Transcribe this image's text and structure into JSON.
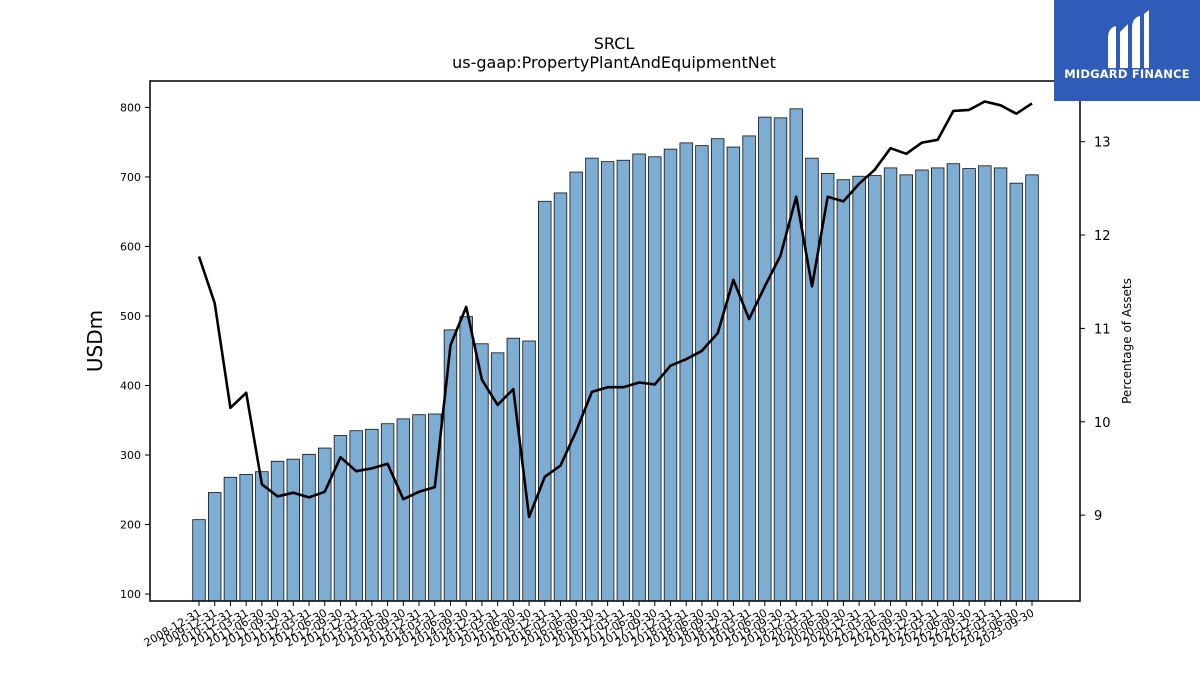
{
  "chart_data": {
    "type": "bar",
    "title": "SRCL",
    "subtitle": "us-gaap:PropertyPlantAndEquipmentNet",
    "ylabel": "USDm",
    "y2label": "Percentage of Assets",
    "ylim": [
      90,
      838
    ],
    "y2lim": [
      8.08,
      13.65
    ],
    "yticks": [
      100,
      200,
      300,
      400,
      500,
      600,
      700,
      800
    ],
    "y2ticks": [
      9,
      10,
      11,
      12,
      13
    ],
    "colors": {
      "bar": "#7eadd4",
      "bar_edge": "#111111",
      "line": "#000000"
    },
    "categories": [
      "2008-12-31",
      "2009-12-31",
      "2010-12-31",
      "2011-03-31",
      "2011-06-30",
      "2011-09-30",
      "2011-12-31",
      "2012-03-31",
      "2012-06-30",
      "2012-09-30",
      "2012-12-31",
      "2013-03-31",
      "2013-06-30",
      "2013-09-30",
      "2013-12-31",
      "2014-03-31",
      "2014-06-30",
      "2014-09-30",
      "2014-12-31",
      "2015-03-31",
      "2015-06-30",
      "2015-09-30",
      "2015-12-31",
      "2016-03-31",
      "2016-06-30",
      "2016-09-30",
      "2016-12-31",
      "2017-03-31",
      "2017-06-30",
      "2017-09-30",
      "2017-12-31",
      "2018-03-31",
      "2018-06-30",
      "2018-09-30",
      "2018-12-31",
      "2019-03-31",
      "2019-06-30",
      "2019-09-30",
      "2019-12-31",
      "2020-03-31",
      "2020-06-30",
      "2020-09-30",
      "2020-12-31",
      "2021-03-31",
      "2021-06-30",
      "2021-09-30",
      "2021-12-31",
      "2022-03-31",
      "2022-06-30",
      "2022-09-30",
      "2022-12-31",
      "2023-03-31",
      "2023-06-30",
      "2023-09-30"
    ],
    "xtick_labels": [
      "2008-12-31",
      "2009-12-31",
      "2010-12-31",
      "2011-03-31",
      "2011-06-30",
      "2011-09-30",
      "2011-12-31",
      "2012-03-31",
      "2012-06-30",
      "2012-09-30",
      "2012-12-31",
      "2013-03-31",
      "2013-06-30",
      "2013-09-30",
      "2013-12-31",
      "2014-03-31",
      "2014-06-30",
      "2014-09-30",
      "2014-12-31",
      "2015-03-31",
      "2015-06-30",
      "2015-09-30",
      "2015-12-31",
      "2016-03-31",
      "2016-06-30",
      "2016-09-30",
      "2016-12-31",
      "2017-03-31",
      "2017-06-30",
      "2017-09-30",
      "2017-12-31",
      "2018-03-31",
      "2018-06-30",
      "2018-09-30",
      "2018-12-31",
      "2019-03-31",
      "2019-06-30",
      "2019-09-30",
      "2019-12-31",
      "2020-03-31",
      "2020-06-30",
      "2020-09-30",
      "2020-12-31",
      "2021-03-31",
      "2021-06-30",
      "2021-09-30",
      "2021-12-31",
      "2022-03-31",
      "2022-06-30",
      "2022-09-30",
      "2022-12-31",
      "2023-03-31",
      "2023-06-30",
      "2023-09-30"
    ],
    "series": [
      {
        "name": "USDm",
        "type": "bar",
        "values": [
          207,
          246,
          268,
          272,
          276,
          291,
          294,
          301,
          310,
          328,
          335,
          337,
          345,
          352,
          358,
          359,
          480,
          499,
          460,
          447,
          468,
          464,
          665,
          677,
          707,
          727,
          722,
          724,
          733,
          729,
          740,
          749,
          745,
          755,
          743,
          759,
          786,
          785,
          798,
          727,
          705,
          696,
          701,
          702,
          713,
          703,
          710,
          713,
          719,
          712,
          716,
          713,
          691,
          703
        ]
      },
      {
        "name": "Percentage of Assets",
        "type": "line",
        "axis": "right",
        "values": [
          11.77,
          11.27,
          10.15,
          10.31,
          9.33,
          9.2,
          9.24,
          9.19,
          9.25,
          9.62,
          9.47,
          9.5,
          9.55,
          9.17,
          9.25,
          9.3,
          10.82,
          11.23,
          10.45,
          10.18,
          10.35,
          8.98,
          9.41,
          9.53,
          9.9,
          10.32,
          10.37,
          10.37,
          10.42,
          10.4,
          10.6,
          10.67,
          10.76,
          10.95,
          11.52,
          11.1,
          11.45,
          11.78,
          12.41,
          11.45,
          12.41,
          12.36,
          12.55,
          12.7,
          12.93,
          12.87,
          12.99,
          13.02,
          13.33,
          13.34,
          13.43,
          13.39,
          13.3,
          13.41
        ]
      }
    ]
  },
  "logo": {
    "text": "MIDGARD FINANCE"
  }
}
